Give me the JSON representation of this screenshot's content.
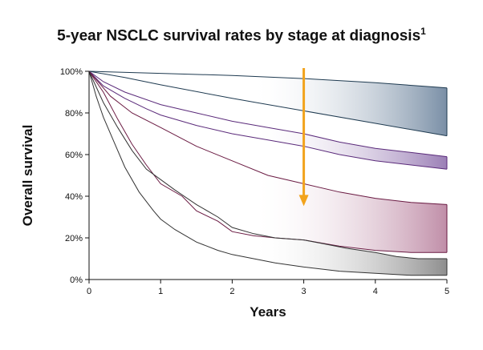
{
  "chart_data": {
    "type": "area",
    "title": "5-year NSCLC survival rates by stage at diagnosis",
    "title_superscript": "1",
    "xlabel": "Years",
    "ylabel": "Overall survival",
    "xlim": [
      0,
      5
    ],
    "ylim": [
      0,
      100
    ],
    "xticks": [
      "0",
      "1",
      "2",
      "3",
      "4",
      "5"
    ],
    "yticks": [
      "0%",
      "20%",
      "40%",
      "60%",
      "80%",
      "100%"
    ],
    "grid": false,
    "legend": "none",
    "arrow": {
      "x": 3,
      "y_from": 100,
      "y_to": 36,
      "color": "#f2a31c"
    },
    "series": [
      {
        "color": "#1e3a50",
        "fill_start": "#ffffff",
        "fill_end": "#7a8fa6",
        "upper": [
          [
            0,
            100
          ],
          [
            1,
            99
          ],
          [
            2,
            98
          ],
          [
            3,
            96.5
          ],
          [
            4,
            94.5
          ],
          [
            5,
            92
          ]
        ],
        "lower": [
          [
            0,
            100
          ],
          [
            0.5,
            97
          ],
          [
            1,
            93.5
          ],
          [
            2,
            87
          ],
          [
            3,
            81
          ],
          [
            4,
            75
          ],
          [
            5,
            69
          ]
        ]
      },
      {
        "color": "#5a2a7a",
        "fill_start": "#ffffff",
        "fill_end": "#9b7fb6",
        "upper": [
          [
            0,
            100
          ],
          [
            0.2,
            95
          ],
          [
            0.5,
            90
          ],
          [
            1,
            84
          ],
          [
            1.5,
            80
          ],
          [
            2,
            76
          ],
          [
            2.5,
            73
          ],
          [
            3,
            70
          ],
          [
            3.5,
            66
          ],
          [
            4,
            63
          ],
          [
            4.5,
            61
          ],
          [
            5,
            59
          ]
        ],
        "lower": [
          [
            0,
            100
          ],
          [
            0.2,
            93
          ],
          [
            0.5,
            87
          ],
          [
            0.8,
            82
          ],
          [
            1,
            79
          ],
          [
            1.5,
            74
          ],
          [
            2,
            70
          ],
          [
            2.5,
            67
          ],
          [
            3,
            64
          ],
          [
            3.5,
            60
          ],
          [
            4,
            57
          ],
          [
            4.5,
            55
          ],
          [
            5,
            53
          ]
        ]
      },
      {
        "color": "#6a1a42",
        "fill_start": "#ffffff",
        "fill_end": "#c08ea8",
        "upper": [
          [
            0,
            100
          ],
          [
            0.3,
            88
          ],
          [
            0.6,
            80
          ],
          [
            1,
            73
          ],
          [
            1.5,
            64
          ],
          [
            2,
            57
          ],
          [
            2.5,
            50
          ],
          [
            3,
            46
          ],
          [
            3.5,
            42
          ],
          [
            4,
            39
          ],
          [
            4.5,
            37
          ],
          [
            5,
            36
          ]
        ],
        "lower": [
          [
            0,
            100
          ],
          [
            0.2,
            90
          ],
          [
            0.4,
            77
          ],
          [
            0.6,
            65
          ],
          [
            0.8,
            55
          ],
          [
            1,
            46
          ],
          [
            1.3,
            40
          ],
          [
            1.5,
            33
          ],
          [
            1.8,
            28
          ],
          [
            2,
            23
          ],
          [
            2.3,
            21
          ],
          [
            2.6,
            20
          ],
          [
            3,
            19
          ],
          [
            3.5,
            16
          ],
          [
            4,
            14
          ],
          [
            4.5,
            13
          ],
          [
            5,
            13
          ]
        ]
      },
      {
        "color": "#333333",
        "fill_start": "#ffffff",
        "fill_end": "#8e8e8e",
        "upper": [
          [
            0,
            100
          ],
          [
            0.2,
            85
          ],
          [
            0.4,
            73
          ],
          [
            0.6,
            62
          ],
          [
            0.8,
            53
          ],
          [
            1,
            48
          ],
          [
            1.2,
            43
          ],
          [
            1.5,
            36
          ],
          [
            1.8,
            30
          ],
          [
            2,
            25
          ],
          [
            2.3,
            22
          ],
          [
            2.6,
            20
          ],
          [
            3,
            19
          ],
          [
            3.3,
            17
          ],
          [
            3.6,
            15
          ],
          [
            4,
            13
          ],
          [
            4.3,
            11
          ],
          [
            4.6,
            10
          ],
          [
            5,
            10
          ]
        ],
        "lower": [
          [
            0,
            100
          ],
          [
            0.1,
            88
          ],
          [
            0.2,
            78
          ],
          [
            0.35,
            66
          ],
          [
            0.5,
            54
          ],
          [
            0.7,
            42
          ],
          [
            0.9,
            33
          ],
          [
            1,
            29
          ],
          [
            1.2,
            24
          ],
          [
            1.5,
            18
          ],
          [
            1.8,
            14
          ],
          [
            2,
            12
          ],
          [
            2.3,
            10
          ],
          [
            2.6,
            8
          ],
          [
            3,
            6
          ],
          [
            3.5,
            4
          ],
          [
            4,
            3
          ],
          [
            4.5,
            2
          ],
          [
            5,
            2
          ]
        ]
      }
    ]
  }
}
